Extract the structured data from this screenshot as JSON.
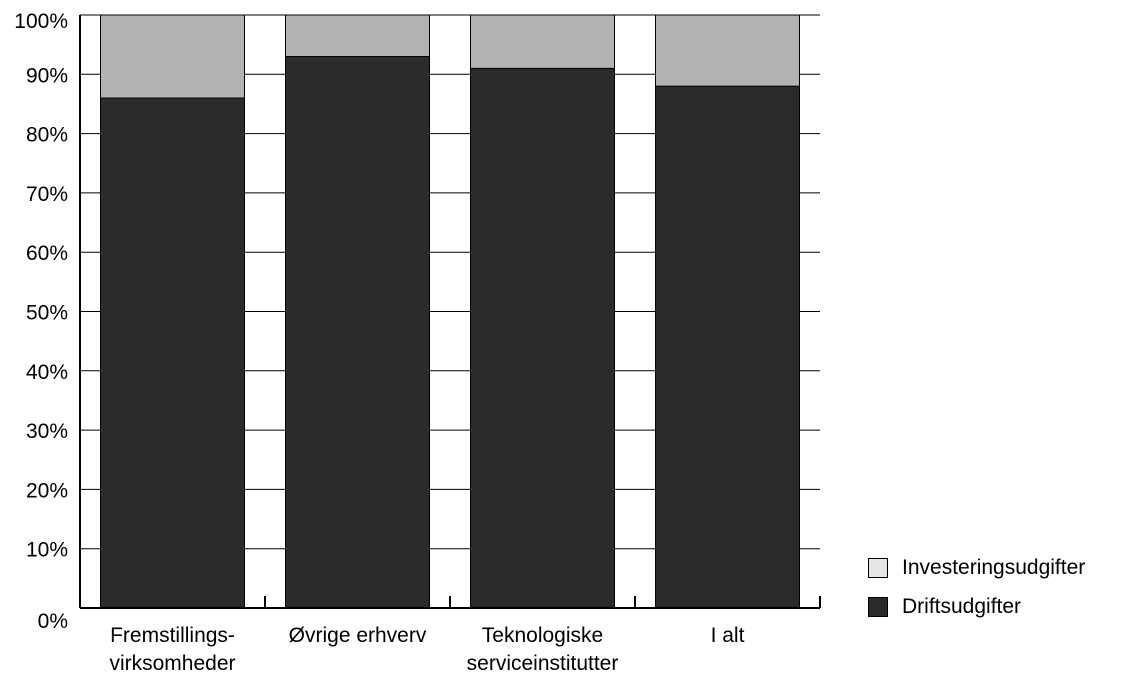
{
  "chart_data": {
    "type": "bar",
    "stacked": true,
    "categories": [
      [
        "Fremstillings-",
        "virksomheder"
      ],
      [
        "Øvrige erhverv"
      ],
      [
        "Teknologiske",
        "serviceinstitutter"
      ],
      [
        "I alt"
      ]
    ],
    "series": [
      {
        "name": "Driftsudgifter",
        "values": [
          86,
          93,
          91,
          88
        ],
        "color": "#2b2b2b"
      },
      {
        "name": "Investeringsudgifter",
        "values": [
          14,
          7,
          9,
          12
        ],
        "color": "#b3b3b3"
      }
    ],
    "y_ticks": [
      "0%",
      "10%",
      "20%",
      "30%",
      "40%",
      "50%",
      "60%",
      "70%",
      "80%",
      "90%",
      "100%"
    ],
    "ylim": [
      0,
      100
    ],
    "grid": true,
    "legend_position": "bottom-right",
    "legend": [
      {
        "label": "Investeringsudgifter",
        "color": "#e6e6e6"
      },
      {
        "label": "Driftsudgifter",
        "color": "#2b2b2b"
      }
    ]
  }
}
